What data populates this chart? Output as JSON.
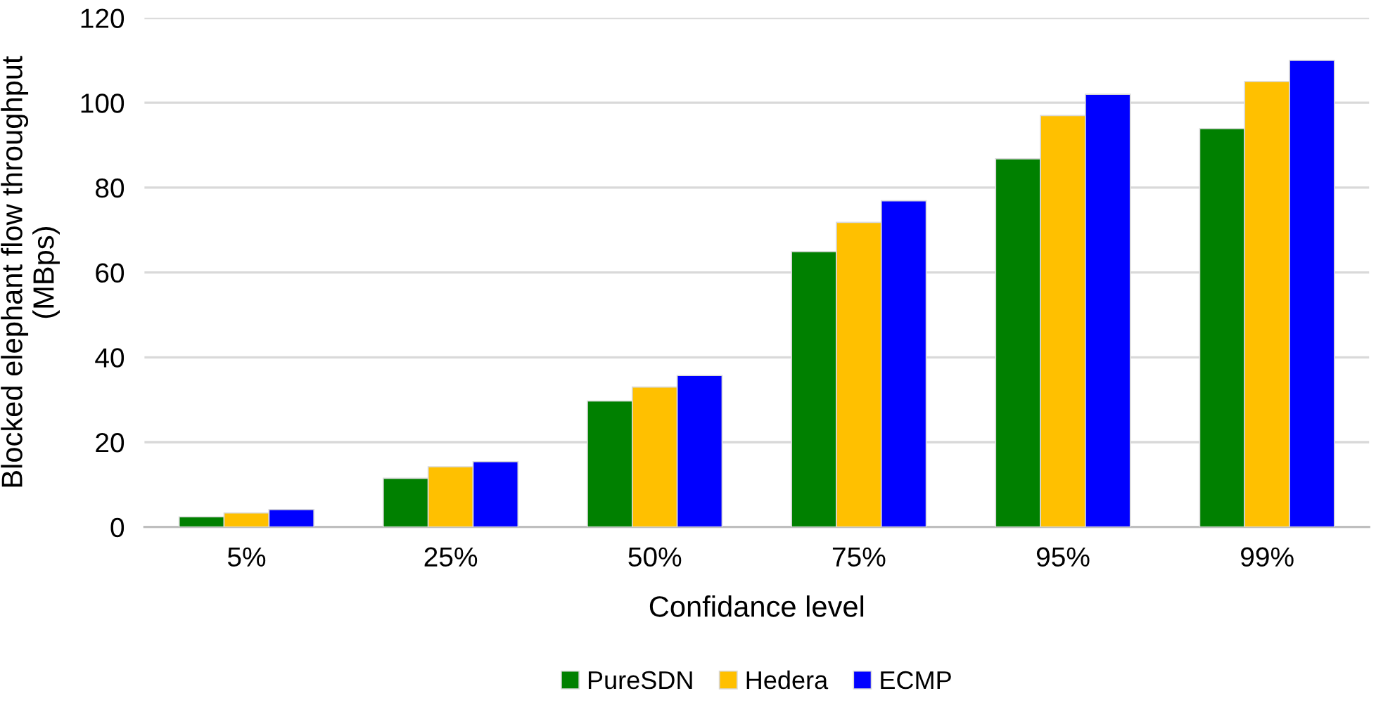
{
  "chart_data": {
    "type": "bar",
    "xlabel": "Confidance level",
    "ylabel": "Blocked elephant flow throughput\n(MBps)",
    "categories": [
      "5%",
      "25%",
      "50%",
      "75%",
      "95%",
      "99%"
    ],
    "series": [
      {
        "name": "PureSDN",
        "color": "#008000",
        "values": [
          2.4,
          11.5,
          29.7,
          64.9,
          86.8,
          93.9
        ]
      },
      {
        "name": "Hedera",
        "color": "#ffc000",
        "values": [
          3.3,
          14.2,
          33,
          71.8,
          97,
          105
        ]
      },
      {
        "name": "ECMP",
        "color": "#0000ff",
        "values": [
          4.1,
          15.4,
          35.7,
          76.9,
          102,
          110
        ]
      }
    ],
    "ylim": [
      0,
      120
    ],
    "yticks": [
      0,
      20,
      40,
      60,
      80,
      100,
      120
    ],
    "grid": "y",
    "legend": "bottom"
  }
}
